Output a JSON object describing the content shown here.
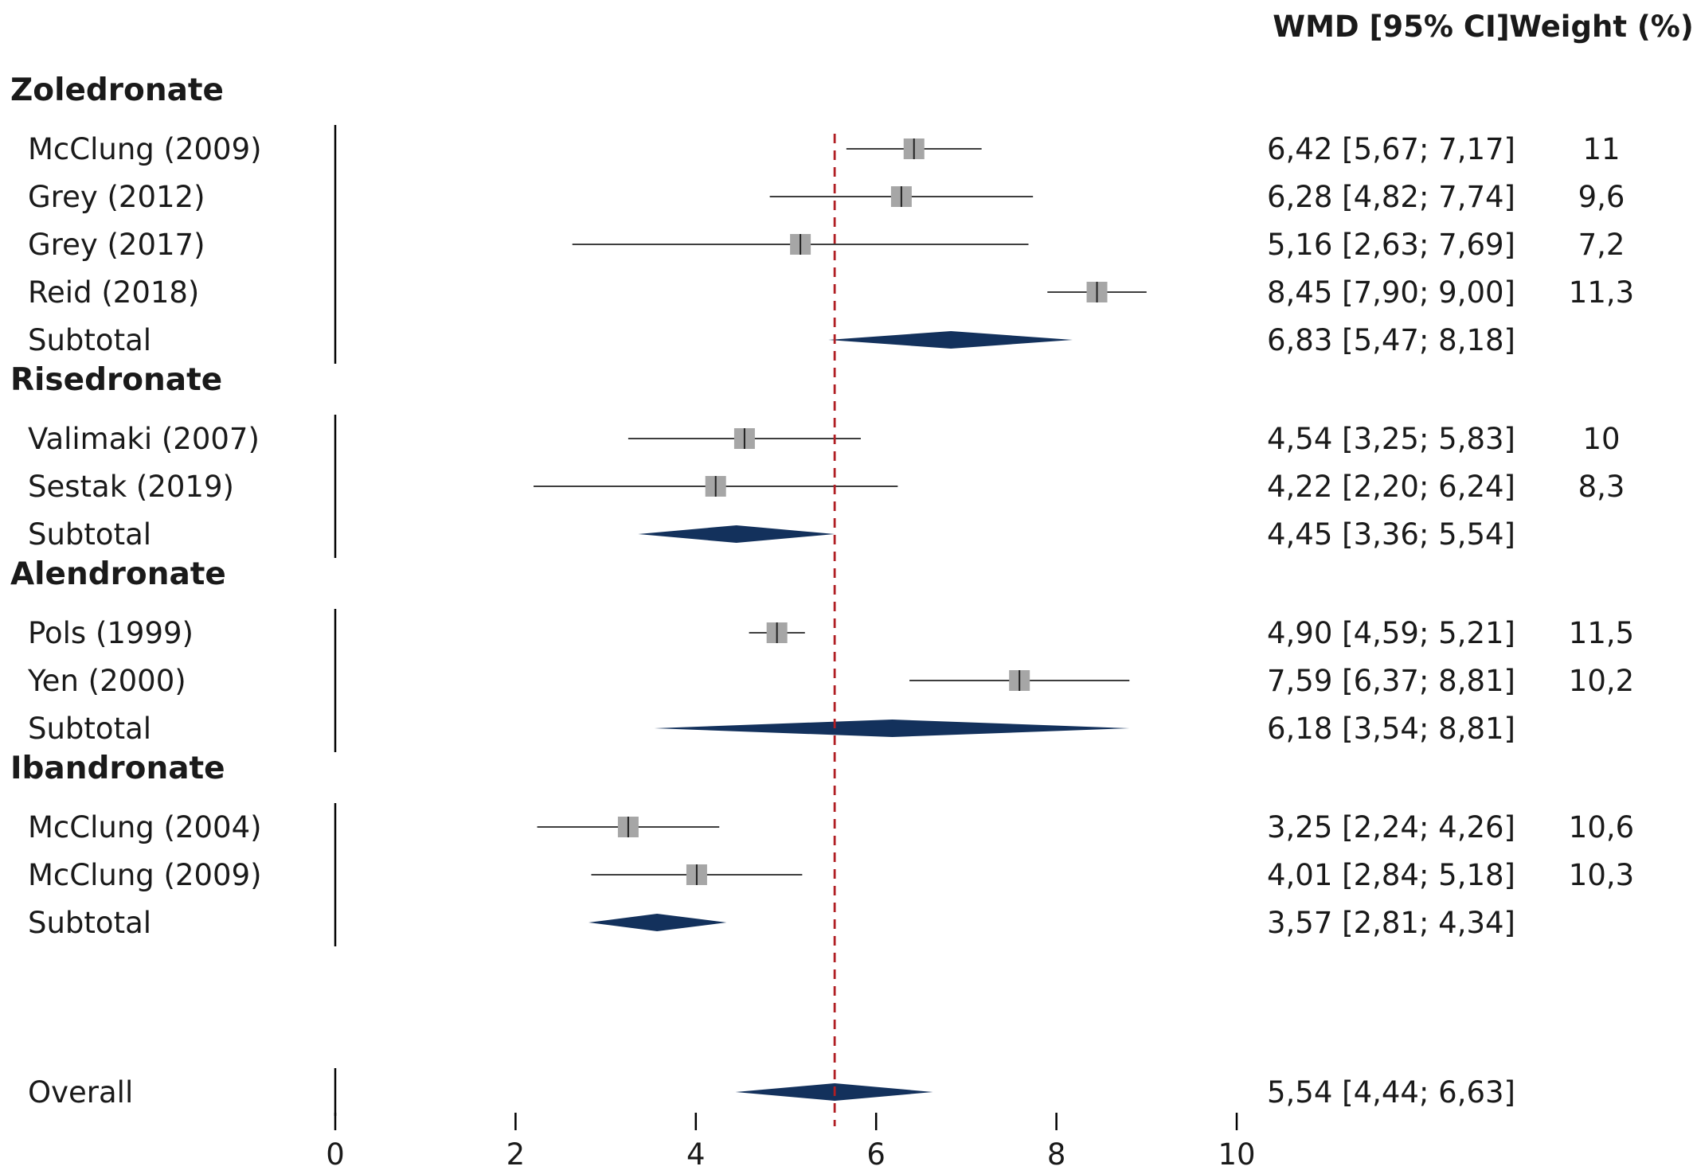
{
  "chart_data": {
    "type": "forest",
    "columns": {
      "estimate": "WMD [95% CI]",
      "weight": "Weight (%)"
    },
    "xlim": [
      0,
      10
    ],
    "xticks": [
      "0",
      "2",
      "4",
      "6",
      "8",
      "10"
    ],
    "reference_line": 5.54,
    "colors": {
      "study": "#a6a6a6",
      "diamond": "#13315c",
      "reference": "#b01e23",
      "ci": "#222222"
    },
    "groups": [
      {
        "name": "Zoledronate",
        "studies": [
          {
            "label": "McClung (2009)",
            "est": 6.42,
            "lo": 5.67,
            "hi": 7.17,
            "text": "6,42 [5,67; 7,17]",
            "weight": "11"
          },
          {
            "label": "Grey (2012)",
            "est": 6.28,
            "lo": 4.82,
            "hi": 7.74,
            "text": "6,28 [4,82; 7,74]",
            "weight": "9,6"
          },
          {
            "label": "Grey (2017)",
            "est": 5.16,
            "lo": 2.63,
            "hi": 7.69,
            "text": "5,16 [2,63; 7,69]",
            "weight": "7,2"
          },
          {
            "label": "Reid (2018)",
            "est": 8.45,
            "lo": 7.9,
            "hi": 9.0,
            "text": "8,45 [7,90; 9,00]",
            "weight": "11,3"
          }
        ],
        "subtotal": {
          "label": "Subtotal",
          "est": 6.83,
          "lo": 5.47,
          "hi": 8.18,
          "text": "6,83 [5,47; 8,18]"
        }
      },
      {
        "name": "Risedronate",
        "studies": [
          {
            "label": "Valimaki (2007)",
            "est": 4.54,
            "lo": 3.25,
            "hi": 5.83,
            "text": "4,54 [3,25; 5,83]",
            "weight": "10"
          },
          {
            "label": "Sestak (2019)",
            "est": 4.22,
            "lo": 2.2,
            "hi": 6.24,
            "text": "4,22 [2,20; 6,24]",
            "weight": "8,3"
          }
        ],
        "subtotal": {
          "label": "Subtotal",
          "est": 4.45,
          "lo": 3.36,
          "hi": 5.54,
          "text": "4,45 [3,36; 5,54]"
        }
      },
      {
        "name": "Alendronate",
        "studies": [
          {
            "label": "Pols (1999)",
            "est": 4.9,
            "lo": 4.59,
            "hi": 5.21,
            "text": "4,90 [4,59; 5,21]",
            "weight": "11,5"
          },
          {
            "label": "Yen (2000)",
            "est": 7.59,
            "lo": 6.37,
            "hi": 8.81,
            "text": "7,59 [6,37; 8,81]",
            "weight": "10,2"
          }
        ],
        "subtotal": {
          "label": "Subtotal",
          "est": 6.18,
          "lo": 3.54,
          "hi": 8.81,
          "text": "6,18 [3,54; 8,81]"
        }
      },
      {
        "name": "Ibandronate",
        "studies": [
          {
            "label": "McClung (2004)",
            "est": 3.25,
            "lo": 2.24,
            "hi": 4.26,
            "text": "3,25 [2,24; 4,26]",
            "weight": "10,6"
          },
          {
            "label": "McClung (2009)",
            "est": 4.01,
            "lo": 2.84,
            "hi": 5.18,
            "text": "4,01 [2,84; 5,18]",
            "weight": "10,3"
          }
        ],
        "subtotal": {
          "label": "Subtotal",
          "est": 3.57,
          "lo": 2.81,
          "hi": 4.34,
          "text": "3,57 [2,81; 4,34]"
        }
      }
    ],
    "overall": {
      "label": "Overall",
      "est": 5.54,
      "lo": 4.44,
      "hi": 6.63,
      "text": "5,54 [4,44; 6,63]"
    }
  }
}
